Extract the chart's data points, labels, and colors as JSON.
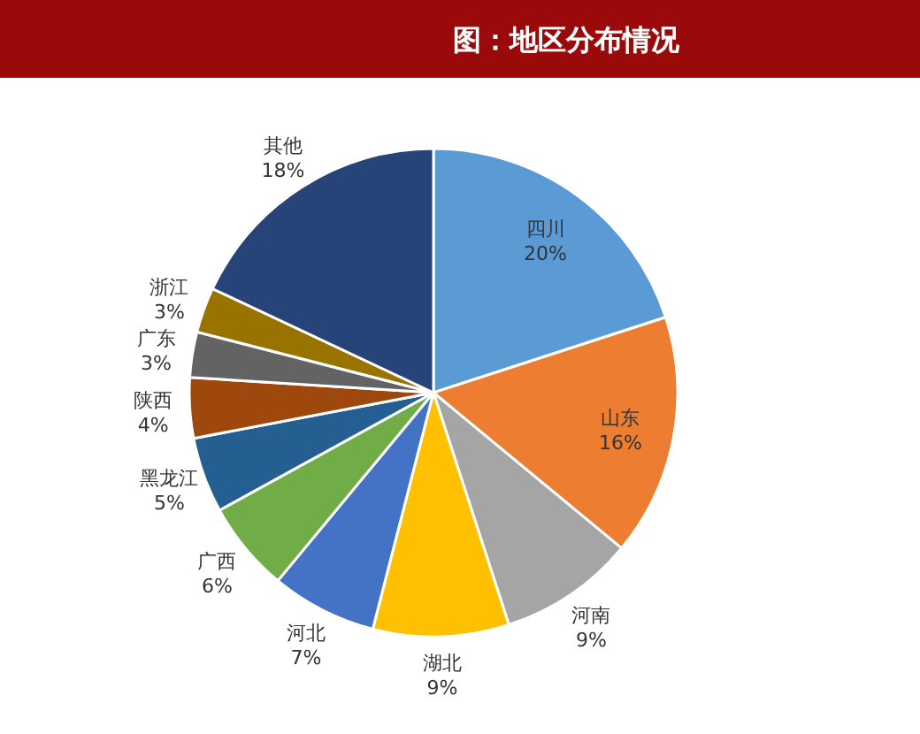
{
  "chart_data": {
    "type": "pie",
    "title": "图：地区分布情况",
    "categories": [
      "四川",
      "山东",
      "河南",
      "湖北",
      "河北",
      "广西",
      "黑龙江",
      "陕西",
      "广东",
      "浙江",
      "其他"
    ],
    "values": [
      20,
      16,
      9,
      9,
      7,
      6,
      5,
      4,
      3,
      3,
      18
    ],
    "colors": [
      "#5b9bd5",
      "#ed7d31",
      "#a5a5a5",
      "#ffc000",
      "#4472c4",
      "#70ad47",
      "#255e91",
      "#9e480e",
      "#636363",
      "#997300",
      "#264478"
    ],
    "value_labels": [
      "20%",
      "16%",
      "9%",
      "9%",
      "7%",
      "6%",
      "5%",
      "4%",
      "3%",
      "3%",
      "18%"
    ]
  }
}
